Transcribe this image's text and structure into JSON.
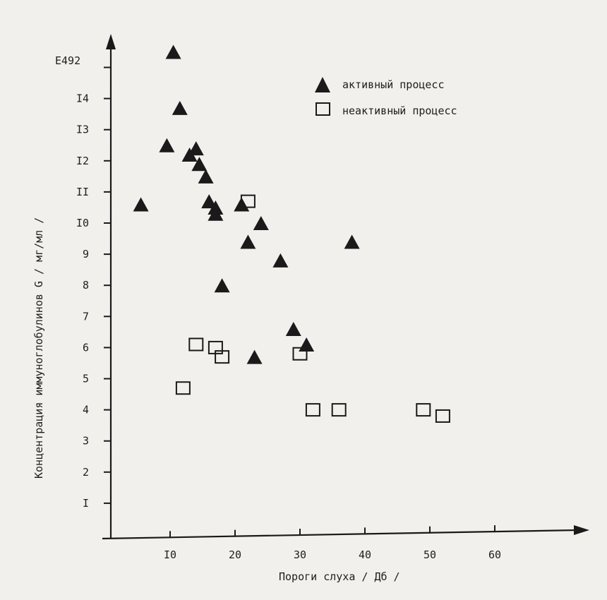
{
  "chart_data": {
    "type": "scatter",
    "title": "",
    "xlabel": "Пороги слуха / Дб /",
    "ylabel": "Концентрация иммуноглобулинов  G  / мг/мл /",
    "y_unit_label": "E492",
    "xlim": [
      0,
      70
    ],
    "ylim": [
      0,
      15
    ],
    "x_ticks": [
      10,
      20,
      30,
      40,
      50,
      60
    ],
    "x_tick_labels": [
      "I0",
      "20",
      "30",
      "40",
      "50",
      "60"
    ],
    "y_ticks": [
      1,
      2,
      3,
      4,
      5,
      6,
      7,
      8,
      9,
      10,
      11,
      12,
      13,
      14
    ],
    "y_tick_labels": [
      "I",
      "2",
      "3",
      "4",
      "5",
      "6",
      "7",
      "8",
      "9",
      "I0",
      "II",
      "I2",
      "I3",
      "I4"
    ],
    "grid": false,
    "legend_position": "top-right",
    "series": [
      {
        "name": "активный процесс",
        "marker": "triangle",
        "color": "#1a1a1a",
        "points": [
          [
            10.5,
            15.5
          ],
          [
            11.5,
            13.7
          ],
          [
            9.5,
            12.5
          ],
          [
            13,
            12.2
          ],
          [
            14,
            12.4
          ],
          [
            14.5,
            11.9
          ],
          [
            15.5,
            11.5
          ],
          [
            5.5,
            10.6
          ],
          [
            16,
            10.7
          ],
          [
            17,
            10.5
          ],
          [
            17,
            10.3
          ],
          [
            21,
            10.6
          ],
          [
            24,
            10.0
          ],
          [
            22,
            9.4
          ],
          [
            27,
            8.8
          ],
          [
            18,
            8.0
          ],
          [
            29,
            6.6
          ],
          [
            31,
            6.1
          ],
          [
            23,
            5.7
          ],
          [
            38,
            9.4
          ]
        ]
      },
      {
        "name": "неактивный процесс",
        "marker": "square-open",
        "color": "#1a1a1a",
        "points": [
          [
            22,
            10.7
          ],
          [
            14,
            6.1
          ],
          [
            17,
            6.0
          ],
          [
            18,
            5.7
          ],
          [
            30,
            5.8
          ],
          [
            12,
            4.7
          ],
          [
            32,
            4.0
          ],
          [
            36,
            4.0
          ],
          [
            49,
            4.0
          ],
          [
            52,
            3.8
          ]
        ]
      }
    ]
  }
}
